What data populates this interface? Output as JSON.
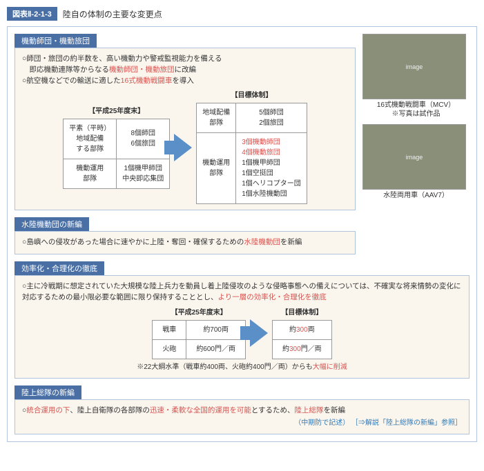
{
  "figure": {
    "label": "図表Ⅱ-2-1-3",
    "title": "陸自の体制の主要な変更点"
  },
  "sec1": {
    "header": "機動師団・機動旅団",
    "bullets": {
      "b1a": "○師団・旅団の約半数を、高い機動力や警戒監視能力を備える",
      "b1b": "　即応機動連隊等からなる",
      "b1c": "機動師団・機動旅団",
      "b1d": "に改編",
      "b2a": "○航空機などでの輸送に適した",
      "b2b": "16式機動戦闘車",
      "b2c": "を導入"
    },
    "leftHead": "【平成25年度末】",
    "rightHead": "【目標体制】",
    "left": {
      "r1c1a": "平素（平時）",
      "r1c1b": "地域配備",
      "r1c1c": "する部隊",
      "r1c2a": "8個師団",
      "r1c2b": "6個旅団",
      "r2c1a": "機動運用",
      "r2c1b": "部隊",
      "r2c2a": "1個機甲師団",
      "r2c2b": "中央即応集団"
    },
    "right": {
      "r1c1a": "地域配備",
      "r1c1b": "部隊",
      "r1c2a": "5個師団",
      "r1c2b": "2個旅団",
      "r2c1a": "機動運用",
      "r2c1b": "部隊",
      "r2c2_red1": "3個機動師団",
      "r2c2_red2": "4個機動旅団",
      "r2c2a": "1個機甲師団",
      "r2c2b": "1個空挺団",
      "r2c2c": "1個ヘリコプター団",
      "r2c2d": "1個水陸機動団"
    },
    "side": {
      "cap1": "16式機動戦闘車（MCV）",
      "cap1b": "※写真は試作品",
      "cap2": "水陸両用車（AAV7）"
    }
  },
  "sec2": {
    "header": "水陸機動団の新編",
    "text_a": "○島嶼への侵攻があった場合に速やかに上陸・奪回・確保するための",
    "text_b": "水陸機動団",
    "text_c": "を新編"
  },
  "sec3": {
    "header": "効率化・合理化の徹底",
    "text_a": "○主に冷戦期に想定されていた大規模な陸上兵力を動員し着上陸侵攻のような侵略事態への備えについては、不確実な将来情勢の変化に対応するための最小限必要な範囲に限り保持することとし、",
    "text_b": "より一層の効率化・合理化を徹底",
    "leftHead": "【平成25年度末】",
    "rightHead": "【目標体制】",
    "left": {
      "r1c1": "戦車",
      "r1c2": "約700両",
      "r2c1": "火砲",
      "r2c2": "約600門／両"
    },
    "right": {
      "r1_a": "約",
      "r1_b": "300",
      "r1_c": "両",
      "r2_a": "約",
      "r2_b": "300",
      "r2_c": "門／両"
    },
    "note_a": "※22大綱水準（戦車約400両、火砲約400門／両）からも",
    "note_b": "大幅に削減"
  },
  "sec4": {
    "header": "陸上総隊の新編",
    "t1": "○",
    "t2": "統合運用の下",
    "t3": "、陸上自衛隊の各部隊の",
    "t4": "迅速・柔軟な全国的運用を可能",
    "t5": "とするため、",
    "t6": "陸上総隊",
    "t7": "を新編",
    "ref_a": "（中期防で記述）",
    "ref_b": "［⇒解説「陸上総隊の新編」参照］"
  }
}
